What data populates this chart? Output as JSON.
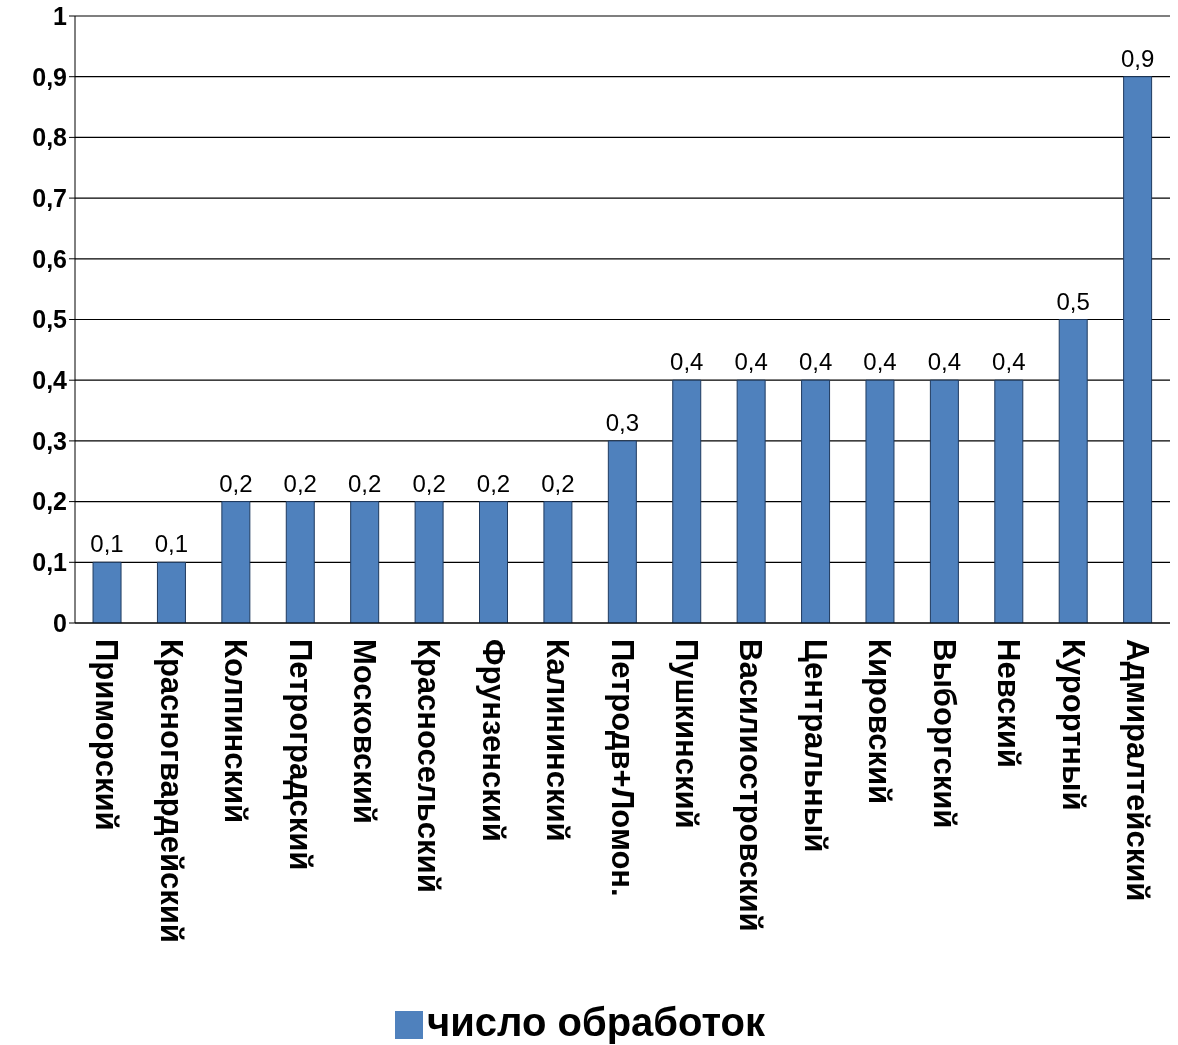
{
  "chart_data": {
    "type": "bar",
    "categories": [
      "Приморский",
      "Красногвардейский",
      "Колпинский",
      "Петроградский",
      "Московский",
      "Красносельский",
      "Фрунзенский",
      "Калининский",
      "Петродв+Ломон.",
      "Пушкинский",
      "Василиостровский",
      "Центральный",
      "Кировский",
      "Выборгский",
      "Невский",
      "Курортный",
      "Адмиралтейский"
    ],
    "series": [
      {
        "name": "число обработок",
        "color": "#4f81bd",
        "values": [
          0.1,
          0.1,
          0.2,
          0.2,
          0.2,
          0.2,
          0.2,
          0.2,
          0.3,
          0.4,
          0.4,
          0.4,
          0.4,
          0.4,
          0.4,
          0.5,
          0.9
        ],
        "value_labels": [
          "0,1",
          "0,1",
          "0,2",
          "0,2",
          "0,2",
          "0,2",
          "0,2",
          "0,2",
          "0,3",
          "0,4",
          "0,4",
          "0,4",
          "0,4",
          "0,4",
          "0,4",
          "0,5",
          "0,9"
        ]
      }
    ],
    "ylim": [
      0,
      1
    ],
    "yticks": [
      0,
      {
        "value": 0.1,
        "label": "0,1"
      },
      {
        "value": 0.2,
        "label": "0,2"
      },
      {
        "value": 0.3,
        "label": "0,3"
      },
      {
        "value": 0.4,
        "label": "0,4"
      },
      {
        "value": 0.5,
        "label": "0,5"
      },
      {
        "value": 0.6,
        "label": "0,6"
      },
      {
        "value": 0.7,
        "label": "0,7"
      },
      {
        "value": 0.8,
        "label": "0,8"
      },
      {
        "value": 0.9,
        "label": "0,9"
      },
      1
    ],
    "grid": "y",
    "legend": "bottom"
  }
}
